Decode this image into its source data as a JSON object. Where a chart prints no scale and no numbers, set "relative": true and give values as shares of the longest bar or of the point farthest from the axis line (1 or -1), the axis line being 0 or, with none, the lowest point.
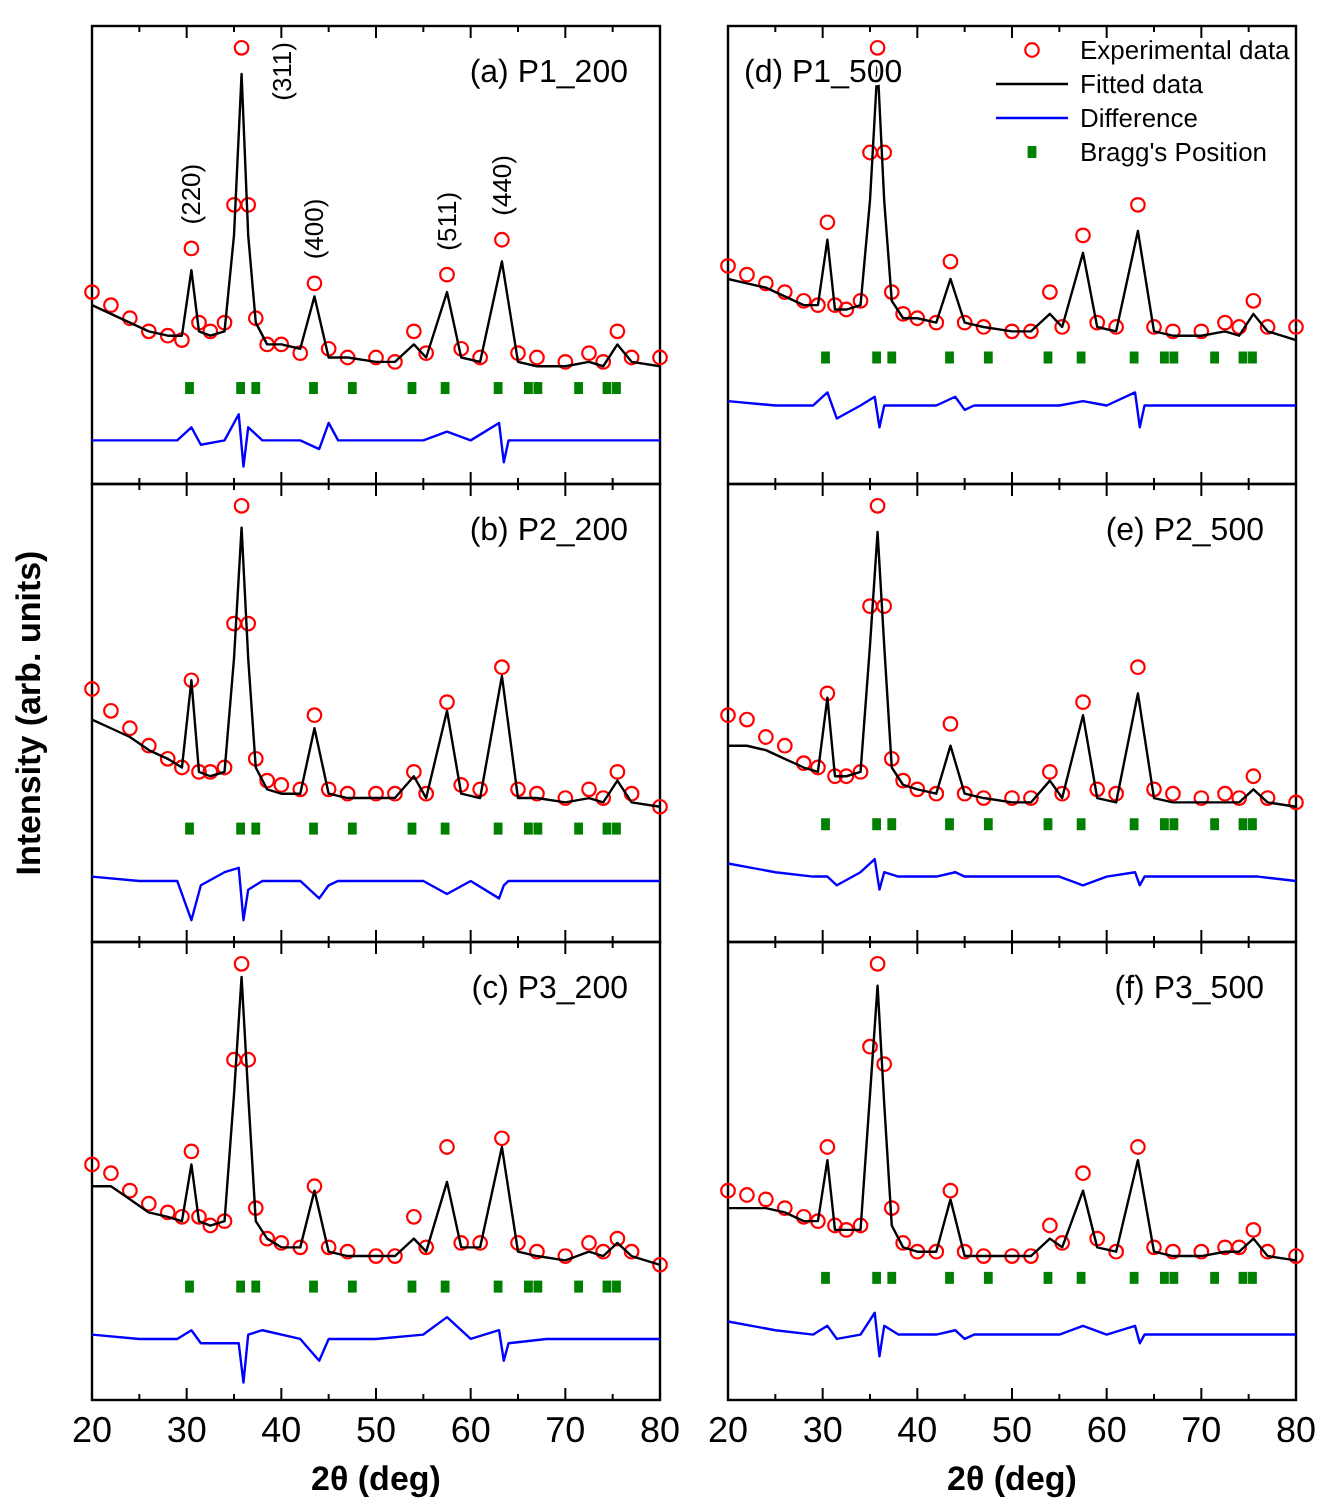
{
  "chart_data": [
    {
      "type": "scatter",
      "title": "(a) P1_200",
      "relative": true,
      "tick_labels": false,
      "xlim": [
        20,
        80
      ],
      "xticks": [
        20,
        {
          "value": 25,
          "label": null
        },
        30,
        {
          "value": 35,
          "label": null
        },
        40,
        {
          "value": 45,
          "label": null
        },
        50,
        {
          "value": 55,
          "label": null
        },
        60,
        {
          "value": 65,
          "label": null
        },
        70,
        {
          "value": 75,
          "label": null
        },
        80
      ],
      "x": [
        20,
        22,
        24,
        26,
        28,
        29.5,
        30.5,
        31.3,
        32.5,
        34,
        35,
        35.8,
        36.5,
        37.3,
        38.5,
        40,
        42,
        43.5,
        45,
        47,
        50,
        52,
        54,
        55.3,
        57.5,
        59,
        61,
        63.3,
        65,
        67,
        70,
        72.5,
        74,
        75.5,
        77,
        80
      ],
      "annotations": [
        {
          "text": "(220)",
          "x": 30.5,
          "y": 0.54
        },
        {
          "text": "(311)",
          "x": 35.8,
          "y": 1
        },
        {
          "text": "(400)",
          "x": 43.5,
          "y": 0.46
        },
        {
          "text": "(511)",
          "x": 57.5,
          "y": 0.48
        },
        {
          "text": "(440)",
          "x": 63.3,
          "y": 0.56
        }
      ],
      "series": [
        {
          "type": "scatter",
          "marker": "circle",
          "color": "#ff0000",
          "values": [
            0.44,
            0.41,
            0.38,
            0.35,
            0.34,
            0.33,
            0.54,
            0.37,
            0.35,
            0.37,
            0.64,
            1,
            0.64,
            0.38,
            0.32,
            0.32,
            0.3,
            0.46,
            0.31,
            0.29,
            0.29,
            0.28,
            0.35,
            0.3,
            0.48,
            0.31,
            0.29,
            0.56,
            0.3,
            0.29,
            0.28,
            0.3,
            0.28,
            0.35,
            0.29,
            0.29
          ]
        },
        {
          "type": "line",
          "color": "#000000",
          "values": [
            0.41,
            0.39,
            0.37,
            0.35,
            0.34,
            0.34,
            0.49,
            0.35,
            0.34,
            0.35,
            0.57,
            0.94,
            0.57,
            0.37,
            0.32,
            0.32,
            0.31,
            0.43,
            0.29,
            0.29,
            0.28,
            0.28,
            0.32,
            0.29,
            0.44,
            0.29,
            0.28,
            0.51,
            0.28,
            0.27,
            0.27,
            0.28,
            0.27,
            0.32,
            0.28,
            0.27
          ]
        },
        {
          "type": "line",
          "color": "#0000ff",
          "x": [
            20,
            25,
            29,
            30.5,
            31.5,
            34,
            35.5,
            36,
            36.5,
            38,
            42,
            44,
            45,
            46,
            50,
            55,
            57.5,
            60,
            63,
            63.5,
            64,
            68,
            72,
            76,
            80
          ],
          "values": [
            0.1,
            0.1,
            0.1,
            0.13,
            0.09,
            0.1,
            0.16,
            0.04,
            0.13,
            0.1,
            0.1,
            0.08,
            0.14,
            0.1,
            0.1,
            0.1,
            0.12,
            0.1,
            0.14,
            0.05,
            0.1,
            0.1,
            0.1,
            0.1,
            0.1
          ]
        },
        {
          "type": "scatter",
          "marker": "square",
          "color": "#008000",
          "x": [
            30.3,
            35.7,
            37.3,
            43.4,
            47.5,
            53.8,
            57.3,
            62.9,
            66.1,
            67.1,
            71.4,
            74.4,
            75.4
          ],
          "values": [
            0.22,
            0.22,
            0.22,
            0.22,
            0.22,
            0.22,
            0.22,
            0.22,
            0.22,
            0.22,
            0.22,
            0.22,
            0.22
          ]
        }
      ]
    },
    {
      "type": "scatter",
      "title": "(b) P2_200",
      "ylabel": "Intensity (arb. units)",
      "relative": true,
      "tick_labels": false,
      "xlim": [
        20,
        80
      ],
      "xticks": [
        20,
        {
          "value": 25,
          "label": null
        },
        30,
        {
          "value": 35,
          "label": null
        },
        40,
        {
          "value": 45,
          "label": null
        },
        50,
        {
          "value": 55,
          "label": null
        },
        60,
        {
          "value": 65,
          "label": null
        },
        70,
        {
          "value": 75,
          "label": null
        },
        80
      ],
      "x": [
        20,
        22,
        24,
        26,
        28,
        29.5,
        30.5,
        31.3,
        32.5,
        34,
        35,
        35.8,
        36.5,
        37.3,
        38.5,
        40,
        42,
        43.5,
        45,
        47,
        50,
        52,
        54,
        55.3,
        57.5,
        59,
        61,
        63.3,
        65,
        67,
        70,
        72.5,
        74,
        75.5,
        77,
        80
      ],
      "series": [
        {
          "type": "scatter",
          "marker": "circle",
          "color": "#ff0000",
          "values": [
            0.58,
            0.53,
            0.49,
            0.45,
            0.42,
            0.4,
            0.6,
            0.39,
            0.39,
            0.4,
            0.73,
            1,
            0.73,
            0.42,
            0.37,
            0.36,
            0.35,
            0.52,
            0.35,
            0.34,
            0.34,
            0.34,
            0.39,
            0.34,
            0.55,
            0.36,
            0.35,
            0.63,
            0.35,
            0.34,
            0.33,
            0.35,
            0.33,
            0.39,
            0.34,
            0.31
          ]
        },
        {
          "type": "line",
          "color": "#000000",
          "values": [
            0.51,
            0.49,
            0.47,
            0.44,
            0.42,
            0.4,
            0.6,
            0.39,
            0.38,
            0.39,
            0.65,
            0.95,
            0.65,
            0.4,
            0.35,
            0.34,
            0.34,
            0.49,
            0.34,
            0.33,
            0.33,
            0.33,
            0.38,
            0.33,
            0.53,
            0.34,
            0.33,
            0.61,
            0.33,
            0.33,
            0.32,
            0.33,
            0.32,
            0.37,
            0.32,
            0.31
          ]
        },
        {
          "type": "line",
          "color": "#0000ff",
          "x": [
            20,
            25,
            29,
            30.5,
            31.5,
            34,
            35.5,
            36,
            36.5,
            38,
            42,
            44,
            45,
            46,
            50,
            55,
            57.5,
            60,
            63,
            63.5,
            64,
            68,
            72,
            76,
            80
          ],
          "values": [
            0.15,
            0.14,
            0.14,
            0.05,
            0.13,
            0.16,
            0.17,
            0.05,
            0.12,
            0.14,
            0.14,
            0.1,
            0.13,
            0.14,
            0.14,
            0.14,
            0.11,
            0.14,
            0.1,
            0.13,
            0.14,
            0.14,
            0.14,
            0.14,
            0.14
          ]
        },
        {
          "type": "scatter",
          "marker": "square",
          "color": "#008000",
          "x": [
            30.3,
            35.7,
            37.3,
            43.4,
            47.5,
            53.8,
            57.3,
            62.9,
            66.1,
            67.1,
            71.4,
            74.4,
            75.4
          ],
          "values": [
            0.26,
            0.26,
            0.26,
            0.26,
            0.26,
            0.26,
            0.26,
            0.26,
            0.26,
            0.26,
            0.26,
            0.26,
            0.26
          ]
        }
      ]
    },
    {
      "type": "scatter",
      "title": "(c) P3_200",
      "xlabel": "2θ (deg)",
      "relative": true,
      "tick_labels": "x",
      "xlim": [
        20,
        80
      ],
      "xticks": [
        20,
        {
          "value": 25,
          "label": null
        },
        30,
        {
          "value": 35,
          "label": null
        },
        40,
        {
          "value": 45,
          "label": null
        },
        50,
        {
          "value": 55,
          "label": null
        },
        60,
        {
          "value": 65,
          "label": null
        },
        70,
        {
          "value": 75,
          "label": null
        },
        80
      ],
      "x": [
        20,
        22,
        24,
        26,
        28,
        29.5,
        30.5,
        31.3,
        32.5,
        34,
        35,
        35.8,
        36.5,
        37.3,
        38.5,
        40,
        42,
        43.5,
        45,
        47,
        50,
        52,
        54,
        55.3,
        57.5,
        59,
        61,
        63.3,
        65,
        67,
        70,
        72.5,
        74,
        75.5,
        77,
        80
      ],
      "series": [
        {
          "type": "scatter",
          "marker": "circle",
          "color": "#ff0000",
          "values": [
            0.54,
            0.52,
            0.48,
            0.45,
            0.43,
            0.42,
            0.57,
            0.42,
            0.4,
            0.41,
            0.78,
            1,
            0.78,
            0.44,
            0.37,
            0.36,
            0.35,
            0.49,
            0.35,
            0.34,
            0.33,
            0.33,
            0.42,
            0.35,
            0.58,
            0.36,
            0.36,
            0.6,
            0.36,
            0.34,
            0.33,
            0.36,
            0.34,
            0.37,
            0.34,
            0.31
          ]
        },
        {
          "type": "line",
          "color": "#000000",
          "values": [
            0.49,
            0.49,
            0.46,
            0.43,
            0.42,
            0.41,
            0.54,
            0.41,
            0.4,
            0.41,
            0.7,
            0.97,
            0.7,
            0.41,
            0.37,
            0.35,
            0.35,
            0.48,
            0.34,
            0.33,
            0.33,
            0.33,
            0.37,
            0.34,
            0.5,
            0.35,
            0.35,
            0.58,
            0.34,
            0.33,
            0.32,
            0.34,
            0.33,
            0.36,
            0.33,
            0.31
          ]
        },
        {
          "type": "line",
          "color": "#0000ff",
          "x": [
            20,
            25,
            29,
            30.5,
            31.5,
            34,
            35.5,
            36,
            36.5,
            38,
            42,
            44,
            45,
            46,
            50,
            55,
            57.5,
            60,
            63,
            63.5,
            64,
            68,
            72,
            76,
            80
          ],
          "values": [
            0.15,
            0.14,
            0.14,
            0.16,
            0.13,
            0.13,
            0.13,
            0.04,
            0.15,
            0.16,
            0.14,
            0.09,
            0.14,
            0.14,
            0.14,
            0.15,
            0.19,
            0.14,
            0.16,
            0.09,
            0.13,
            0.14,
            0.14,
            0.14,
            0.14
          ]
        },
        {
          "type": "scatter",
          "marker": "square",
          "color": "#008000",
          "x": [
            30.3,
            35.7,
            37.3,
            43.4,
            47.5,
            53.8,
            57.3,
            62.9,
            66.1,
            67.1,
            71.4,
            74.4,
            75.4
          ],
          "values": [
            0.26,
            0.26,
            0.26,
            0.26,
            0.26,
            0.26,
            0.26,
            0.26,
            0.26,
            0.26,
            0.26,
            0.26,
            0.26
          ]
        }
      ]
    },
    {
      "type": "scatter",
      "title": "(d) P1_500",
      "legend": "top right",
      "relative": true,
      "tick_labels": false,
      "xlim": [
        20,
        80
      ],
      "xticks": [
        20,
        {
          "value": 25,
          "label": null
        },
        30,
        {
          "value": 35,
          "label": null
        },
        40,
        {
          "value": 45,
          "label": null
        },
        50,
        {
          "value": 55,
          "label": null
        },
        60,
        {
          "value": 65,
          "label": null
        },
        70,
        {
          "value": 75,
          "label": null
        },
        80
      ],
      "x": [
        20,
        22,
        24,
        26,
        28,
        29.5,
        30.5,
        31.3,
        32.5,
        34,
        35,
        35.8,
        36.5,
        37.3,
        38.5,
        40,
        42,
        43.5,
        45,
        47,
        50,
        52,
        54,
        55.3,
        57.5,
        59,
        61,
        63.3,
        65,
        67,
        70,
        72.5,
        74,
        75.5,
        77,
        80
      ],
      "series": [
        {
          "name": "Experimental data",
          "type": "scatter",
          "marker": "circle",
          "color": "#ff0000",
          "values": [
            0.5,
            0.48,
            0.46,
            0.44,
            0.42,
            0.41,
            0.6,
            0.41,
            0.4,
            0.42,
            0.76,
            1,
            0.76,
            0.44,
            0.39,
            0.38,
            0.37,
            0.51,
            0.37,
            0.36,
            0.35,
            0.35,
            0.44,
            0.36,
            0.57,
            0.37,
            0.36,
            0.64,
            0.36,
            0.35,
            0.35,
            0.37,
            0.36,
            0.42,
            0.36,
            0.36
          ]
        },
        {
          "name": "Fitted data",
          "type": "line",
          "color": "#000000",
          "values": [
            0.47,
            0.46,
            0.45,
            0.43,
            0.41,
            0.41,
            0.56,
            0.4,
            0.4,
            0.41,
            0.65,
            0.96,
            0.65,
            0.42,
            0.38,
            0.38,
            0.37,
            0.47,
            0.37,
            0.36,
            0.35,
            0.35,
            0.39,
            0.36,
            0.53,
            0.36,
            0.35,
            0.58,
            0.35,
            0.34,
            0.34,
            0.35,
            0.34,
            0.39,
            0.35,
            0.33
          ]
        },
        {
          "name": "Difference",
          "type": "line",
          "color": "#0000ff",
          "x": [
            20,
            25,
            29,
            30.5,
            31.5,
            34,
            35.5,
            36,
            36.5,
            38,
            42,
            44,
            45,
            46,
            50,
            55,
            57.5,
            60,
            63,
            63.5,
            64,
            68,
            72,
            76,
            80
          ],
          "values": [
            0.19,
            0.18,
            0.18,
            0.21,
            0.15,
            0.18,
            0.2,
            0.13,
            0.18,
            0.18,
            0.18,
            0.2,
            0.17,
            0.18,
            0.18,
            0.18,
            0.19,
            0.18,
            0.21,
            0.13,
            0.18,
            0.18,
            0.18,
            0.18,
            0.18
          ]
        },
        {
          "name": "Bragg's Position",
          "type": "scatter",
          "marker": "square",
          "color": "#008000",
          "x": [
            30.3,
            35.7,
            37.3,
            43.4,
            47.5,
            53.8,
            57.3,
            62.9,
            66.1,
            67.1,
            71.4,
            74.4,
            75.4
          ],
          "values": [
            0.29,
            0.29,
            0.29,
            0.29,
            0.29,
            0.29,
            0.29,
            0.29,
            0.29,
            0.29,
            0.29,
            0.29,
            0.29
          ]
        }
      ]
    },
    {
      "type": "scatter",
      "title": "(e) P2_500",
      "relative": true,
      "tick_labels": false,
      "xlim": [
        20,
        80
      ],
      "xticks": [
        20,
        {
          "value": 25,
          "label": null
        },
        30,
        {
          "value": 35,
          "label": null
        },
        40,
        {
          "value": 45,
          "label": null
        },
        50,
        {
          "value": 55,
          "label": null
        },
        60,
        {
          "value": 65,
          "label": null
        },
        70,
        {
          "value": 75,
          "label": null
        },
        80
      ],
      "x": [
        20,
        22,
        24,
        26,
        28,
        29.5,
        30.5,
        31.3,
        32.5,
        34,
        35,
        35.8,
        36.5,
        37.3,
        38.5,
        40,
        42,
        43.5,
        45,
        47,
        50,
        52,
        54,
        55.3,
        57.5,
        59,
        61,
        63.3,
        65,
        67,
        70,
        72.5,
        74,
        75.5,
        77,
        80
      ],
      "series": [
        {
          "type": "scatter",
          "marker": "circle",
          "color": "#ff0000",
          "values": [
            0.52,
            0.51,
            0.47,
            0.45,
            0.41,
            0.4,
            0.57,
            0.38,
            0.38,
            0.39,
            0.77,
            1,
            0.77,
            0.42,
            0.37,
            0.35,
            0.34,
            0.5,
            0.34,
            0.33,
            0.33,
            0.33,
            0.39,
            0.34,
            0.55,
            0.35,
            0.34,
            0.63,
            0.35,
            0.34,
            0.33,
            0.34,
            0.33,
            0.38,
            0.33,
            0.32
          ]
        },
        {
          "type": "line",
          "color": "#000000",
          "values": [
            0.45,
            0.45,
            0.44,
            0.42,
            0.4,
            0.39,
            0.56,
            0.38,
            0.38,
            0.39,
            0.68,
            0.94,
            0.68,
            0.4,
            0.36,
            0.35,
            0.34,
            0.45,
            0.34,
            0.33,
            0.32,
            0.32,
            0.37,
            0.33,
            0.52,
            0.33,
            0.32,
            0.57,
            0.33,
            0.32,
            0.32,
            0.32,
            0.32,
            0.35,
            0.32,
            0.31
          ]
        },
        {
          "type": "line",
          "color": "#0000ff",
          "x": [
            20,
            25,
            29,
            30.5,
            31.5,
            34,
            35.5,
            36,
            36.5,
            38,
            42,
            44,
            45,
            46,
            50,
            55,
            57.5,
            60,
            63,
            63.5,
            64,
            68,
            72,
            76,
            80
          ],
          "values": [
            0.18,
            0.16,
            0.15,
            0.15,
            0.13,
            0.16,
            0.19,
            0.12,
            0.16,
            0.15,
            0.15,
            0.16,
            0.15,
            0.15,
            0.15,
            0.15,
            0.13,
            0.15,
            0.16,
            0.13,
            0.15,
            0.15,
            0.15,
            0.15,
            0.14
          ]
        },
        {
          "type": "scatter",
          "marker": "square",
          "color": "#008000",
          "x": [
            30.3,
            35.7,
            37.3,
            43.4,
            47.5,
            53.8,
            57.3,
            62.9,
            66.1,
            67.1,
            71.4,
            74.4,
            75.4
          ],
          "values": [
            0.27,
            0.27,
            0.27,
            0.27,
            0.27,
            0.27,
            0.27,
            0.27,
            0.27,
            0.27,
            0.27,
            0.27,
            0.27
          ]
        }
      ]
    },
    {
      "type": "scatter",
      "title": "(f) P3_500",
      "xlabel": "2θ (deg)",
      "relative": true,
      "tick_labels": "x",
      "xlim": [
        20,
        80
      ],
      "xticks": [
        20,
        {
          "value": 25,
          "label": null
        },
        30,
        {
          "value": 35,
          "label": null
        },
        40,
        {
          "value": 45,
          "label": null
        },
        50,
        {
          "value": 55,
          "label": null
        },
        60,
        {
          "value": 65,
          "label": null
        },
        70,
        {
          "value": 75,
          "label": null
        },
        80
      ],
      "x": [
        20,
        22,
        24,
        26,
        28,
        29.5,
        30.5,
        31.3,
        32.5,
        34,
        35,
        35.8,
        36.5,
        37.3,
        38.5,
        40,
        42,
        43.5,
        45,
        47,
        50,
        52,
        54,
        55.3,
        57.5,
        59,
        61,
        63.3,
        65,
        67,
        70,
        72.5,
        74,
        75.5,
        77,
        80
      ],
      "series": [
        {
          "type": "scatter",
          "marker": "circle",
          "color": "#ff0000",
          "values": [
            0.48,
            0.47,
            0.46,
            0.44,
            0.42,
            0.41,
            0.58,
            0.4,
            0.39,
            0.4,
            0.81,
            1,
            0.77,
            0.44,
            0.36,
            0.34,
            0.34,
            0.48,
            0.34,
            0.33,
            0.33,
            0.33,
            0.4,
            0.36,
            0.52,
            0.37,
            0.34,
            0.58,
            0.35,
            0.34,
            0.34,
            0.35,
            0.35,
            0.39,
            0.34,
            0.33
          ]
        },
        {
          "type": "line",
          "color": "#000000",
          "values": [
            0.44,
            0.44,
            0.44,
            0.43,
            0.41,
            0.41,
            0.55,
            0.39,
            0.39,
            0.39,
            0.7,
            0.95,
            0.68,
            0.4,
            0.35,
            0.34,
            0.34,
            0.46,
            0.33,
            0.33,
            0.33,
            0.33,
            0.37,
            0.35,
            0.48,
            0.35,
            0.34,
            0.55,
            0.34,
            0.33,
            0.33,
            0.34,
            0.34,
            0.37,
            0.33,
            0.32
          ]
        },
        {
          "type": "line",
          "color": "#0000ff",
          "x": [
            20,
            25,
            29,
            30.5,
            31.5,
            34,
            35.5,
            36,
            36.5,
            38,
            42,
            44,
            45,
            46,
            50,
            55,
            57.5,
            60,
            63,
            63.5,
            64,
            68,
            72,
            76,
            80
          ],
          "values": [
            0.18,
            0.16,
            0.15,
            0.17,
            0.14,
            0.15,
            0.2,
            0.1,
            0.17,
            0.15,
            0.15,
            0.16,
            0.14,
            0.15,
            0.15,
            0.15,
            0.17,
            0.15,
            0.17,
            0.13,
            0.15,
            0.15,
            0.15,
            0.15,
            0.15
          ]
        },
        {
          "type": "scatter",
          "marker": "square",
          "color": "#008000",
          "x": [
            30.3,
            35.7,
            37.3,
            43.4,
            47.5,
            53.8,
            57.3,
            62.9,
            66.1,
            67.1,
            71.4,
            74.4,
            75.4
          ],
          "values": [
            0.28,
            0.28,
            0.28,
            0.28,
            0.28,
            0.28,
            0.28,
            0.28,
            0.28,
            0.28,
            0.28,
            0.28,
            0.28
          ]
        }
      ]
    }
  ]
}
